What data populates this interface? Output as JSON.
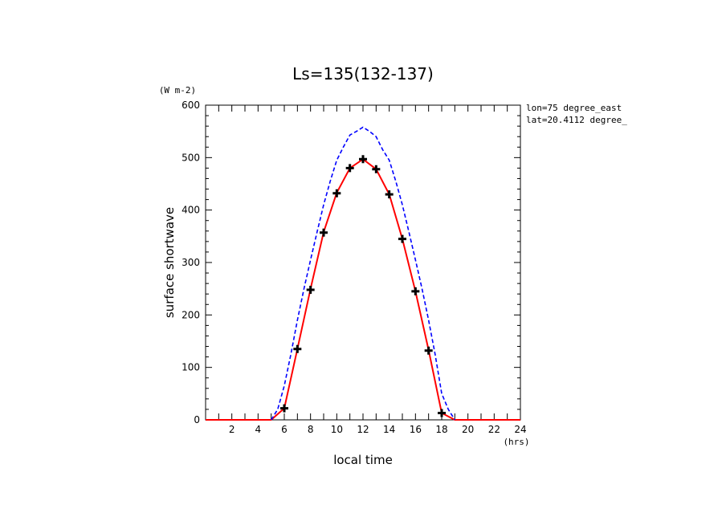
{
  "chart_data": {
    "type": "line",
    "title": "Ls=135(132-137)",
    "xlabel": "local time",
    "ylabel": "surface shortwave",
    "x_unit": "(hrs)",
    "y_unit": "(W m-2)",
    "annotations": [
      "lon=75 degree_east",
      "lat=20.4112 degree_"
    ],
    "xlim": [
      0,
      24
    ],
    "ylim": [
      0,
      600
    ],
    "xticks": [
      2,
      4,
      6,
      8,
      10,
      12,
      14,
      16,
      18,
      20,
      22,
      24
    ],
    "yticks": [
      0,
      100,
      200,
      300,
      400,
      500,
      600
    ],
    "grid": false,
    "series": [
      {
        "style": "solid",
        "color": "#ff0000",
        "x": [
          0,
          1,
          2,
          3,
          4,
          5,
          6,
          7,
          8,
          9,
          10,
          11,
          12,
          13,
          14,
          15,
          16,
          17,
          18,
          19,
          20,
          21,
          22,
          23,
          24
        ],
        "y": [
          0,
          0,
          0,
          0,
          0,
          0,
          22,
          135,
          250,
          358,
          433,
          480,
          497,
          478,
          430,
          345,
          245,
          133,
          13,
          0,
          0,
          0,
          0,
          0,
          0
        ]
      },
      {
        "style": "dashed",
        "color": "#0000ff",
        "x": [
          5,
          5.5,
          6,
          6.5,
          7,
          7.5,
          8,
          8.5,
          9,
          9.5,
          10,
          10.5,
          11,
          11.5,
          12,
          12.5,
          13,
          13.5,
          14,
          14.5,
          15,
          15.5,
          16,
          16.5,
          17,
          17.5,
          18,
          18.5,
          19
        ],
        "y": [
          0,
          20,
          65,
          125,
          190,
          250,
          305,
          358,
          410,
          455,
          495,
          520,
          543,
          550,
          558,
          550,
          540,
          515,
          495,
          455,
          410,
          358,
          305,
          250,
          190,
          125,
          50,
          20,
          0
        ]
      },
      {
        "style": "markers",
        "marker": "cross",
        "color": "#000000",
        "x": [
          6,
          7,
          8,
          9,
          10,
          11,
          12,
          13,
          14,
          15,
          16,
          17,
          18
        ],
        "y": [
          22,
          135,
          248,
          357,
          432,
          480,
          497,
          478,
          430,
          345,
          245,
          132,
          13
        ]
      }
    ]
  }
}
